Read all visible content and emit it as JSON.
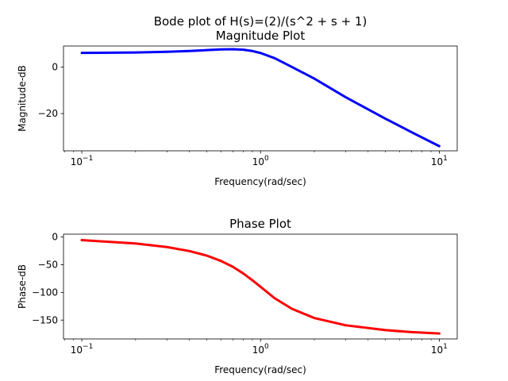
{
  "figure": {
    "suptitle": "Bode plot of H(s)=(2)/(s^2 + s + 1)"
  },
  "chart_data": [
    {
      "type": "line",
      "title": "Magnitude Plot",
      "xlabel": "Frequency(rad/sec)",
      "ylabel": "Magnitude-dB",
      "xscale": "log",
      "xlim": [
        0.079,
        12.6
      ],
      "ylim": [
        -36.0,
        9.0
      ],
      "xticks": [
        0.1,
        1,
        10
      ],
      "xtick_labels": [
        {
          "base": "10",
          "exp": "−1"
        },
        {
          "base": "10",
          "exp": "0"
        },
        {
          "base": "10",
          "exp": "1"
        }
      ],
      "yticks": [
        0,
        -20
      ],
      "ytick_labels": [
        "0",
        "−20"
      ],
      "grid": false,
      "series": [
        {
          "color": "#0000ff",
          "x": [
            0.1,
            0.2,
            0.3,
            0.4,
            0.5,
            0.6,
            0.7,
            0.8,
            0.9,
            1.0,
            1.2,
            1.5,
            2.0,
            3.0,
            5.0,
            7.0,
            10.0
          ],
          "y": [
            6.06,
            6.23,
            6.51,
            6.86,
            7.24,
            7.54,
            7.63,
            7.42,
            6.86,
            6.02,
            3.78,
            0.0,
            -5.0,
            -13.02,
            -22.2,
            -28.0,
            -33.99
          ]
        }
      ]
    },
    {
      "type": "line",
      "title": "Phase Plot",
      "xlabel": "Frequency(rad/sec)",
      "ylabel": "Phase-dB",
      "xscale": "log",
      "xlim": [
        0.079,
        12.6
      ],
      "ylim": [
        -184.0,
        5.0
      ],
      "xticks": [
        0.1,
        1,
        10
      ],
      "xtick_labels": [
        {
          "base": "10",
          "exp": "−1"
        },
        {
          "base": "10",
          "exp": "0"
        },
        {
          "base": "10",
          "exp": "1"
        }
      ],
      "yticks": [
        0,
        -50,
        -100,
        -150
      ],
      "ytick_labels": [
        "0",
        "−50",
        "−100",
        "−150"
      ],
      "grid": false,
      "series": [
        {
          "color": "#ff0000",
          "x": [
            0.1,
            0.2,
            0.3,
            0.4,
            0.5,
            0.6,
            0.7,
            0.8,
            0.9,
            1.0,
            1.2,
            1.5,
            2.0,
            3.0,
            5.0,
            7.0,
            10.0
          ],
          "y": [
            -5.8,
            -11.8,
            -18.3,
            -25.5,
            -33.7,
            -43.2,
            -53.9,
            -65.8,
            -78.1,
            -90.0,
            -110.6,
            -129.8,
            -146.3,
            -159.4,
            -168.1,
            -171.7,
            -174.2
          ]
        }
      ]
    }
  ]
}
